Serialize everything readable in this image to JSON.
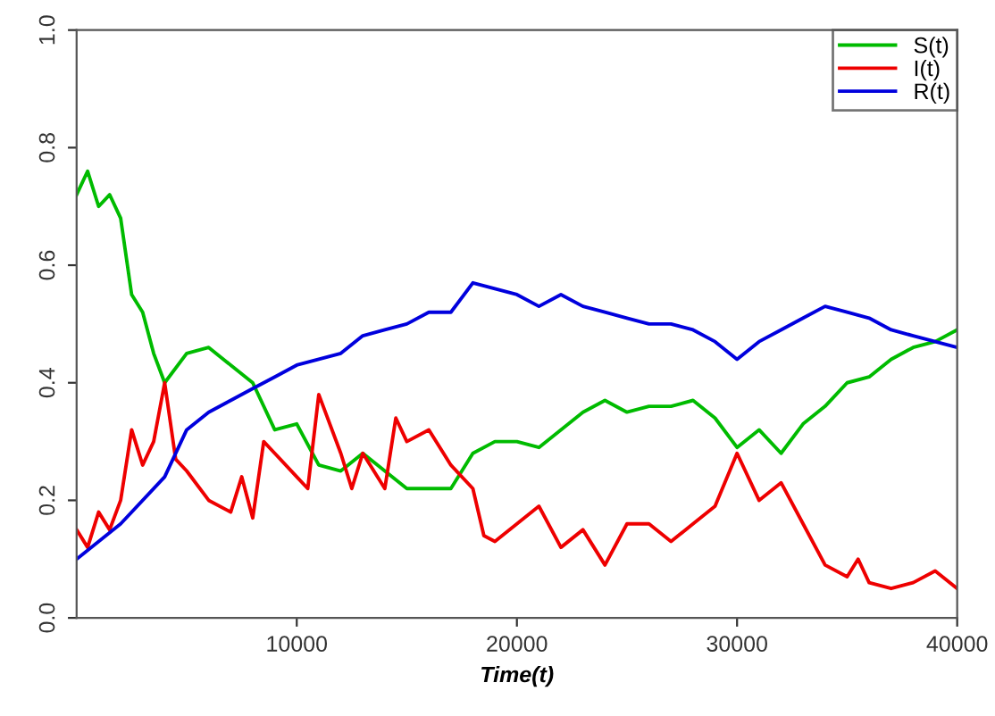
{
  "chart_data": {
    "type": "line",
    "xlabel": "Time(t)",
    "xlim": [
      0,
      40000
    ],
    "xticks": [
      10000,
      20000,
      30000,
      40000
    ],
    "ylim": [
      0,
      1
    ],
    "yticks": [
      {
        "value": 0,
        "label": "0.0"
      },
      0.2,
      0.4,
      0.6,
      0.8,
      {
        "value": 1,
        "label": "1.0"
      }
    ],
    "legend": "top right",
    "grid": false,
    "series": [
      {
        "name": "S(t)",
        "color": "#00bb00",
        "x": [
          0,
          500,
          1000,
          1500,
          2000,
          2500,
          3000,
          3500,
          4000,
          5000,
          6000,
          7000,
          8000,
          9000,
          10000,
          11000,
          12000,
          13000,
          14000,
          15000,
          16000,
          17000,
          18000,
          19000,
          20000,
          21000,
          22000,
          23000,
          24000,
          25000,
          26000,
          27000,
          28000,
          29000,
          30000,
          31000,
          32000,
          33000,
          34000,
          35000,
          36000,
          37000,
          38000,
          39000,
          40000
        ],
        "values": [
          0.72,
          0.76,
          0.7,
          0.72,
          0.68,
          0.55,
          0.52,
          0.45,
          0.4,
          0.45,
          0.46,
          0.43,
          0.4,
          0.32,
          0.33,
          0.26,
          0.25,
          0.28,
          0.25,
          0.22,
          0.22,
          0.22,
          0.28,
          0.3,
          0.3,
          0.29,
          0.32,
          0.35,
          0.37,
          0.35,
          0.36,
          0.36,
          0.37,
          0.34,
          0.29,
          0.32,
          0.28,
          0.33,
          0.36,
          0.4,
          0.41,
          0.44,
          0.46,
          0.47,
          0.49
        ]
      },
      {
        "name": "I(t)",
        "color": "#ee0000",
        "x": [
          0,
          500,
          1000,
          1500,
          2000,
          2500,
          3000,
          3500,
          4000,
          4500,
          5000,
          6000,
          7000,
          7500,
          8000,
          8500,
          9000,
          10000,
          10500,
          11000,
          12000,
          12500,
          13000,
          14000,
          14500,
          15000,
          16000,
          17000,
          18000,
          18500,
          19000,
          20000,
          21000,
          22000,
          23000,
          24000,
          25000,
          26000,
          27000,
          28000,
          29000,
          30000,
          31000,
          32000,
          33000,
          34000,
          35000,
          35500,
          36000,
          37000,
          38000,
          39000,
          40000
        ],
        "values": [
          0.15,
          0.12,
          0.18,
          0.15,
          0.2,
          0.32,
          0.26,
          0.3,
          0.4,
          0.27,
          0.25,
          0.2,
          0.18,
          0.24,
          0.17,
          0.3,
          0.28,
          0.24,
          0.22,
          0.38,
          0.28,
          0.22,
          0.28,
          0.22,
          0.34,
          0.3,
          0.32,
          0.26,
          0.22,
          0.14,
          0.13,
          0.16,
          0.19,
          0.12,
          0.15,
          0.09,
          0.16,
          0.16,
          0.13,
          0.16,
          0.19,
          0.28,
          0.2,
          0.23,
          0.16,
          0.09,
          0.07,
          0.1,
          0.06,
          0.05,
          0.06,
          0.08,
          0.05
        ]
      },
      {
        "name": "R(t)",
        "color": "#0000dd",
        "x": [
          0,
          2000,
          4000,
          5000,
          6000,
          7000,
          8000,
          9000,
          10000,
          11000,
          12000,
          13000,
          14000,
          15000,
          16000,
          17000,
          18000,
          19000,
          20000,
          21000,
          22000,
          23000,
          24000,
          25000,
          26000,
          27000,
          28000,
          29000,
          30000,
          31000,
          32000,
          33000,
          34000,
          35000,
          36000,
          37000,
          38000,
          39000,
          40000
        ],
        "values": [
          0.1,
          0.16,
          0.24,
          0.32,
          0.35,
          0.37,
          0.39,
          0.41,
          0.43,
          0.44,
          0.45,
          0.48,
          0.49,
          0.5,
          0.52,
          0.52,
          0.57,
          0.56,
          0.55,
          0.53,
          0.55,
          0.53,
          0.52,
          0.51,
          0.5,
          0.5,
          0.49,
          0.47,
          0.44,
          0.47,
          0.49,
          0.51,
          0.53,
          0.52,
          0.51,
          0.49,
          0.48,
          0.47,
          0.46
        ]
      }
    ]
  }
}
